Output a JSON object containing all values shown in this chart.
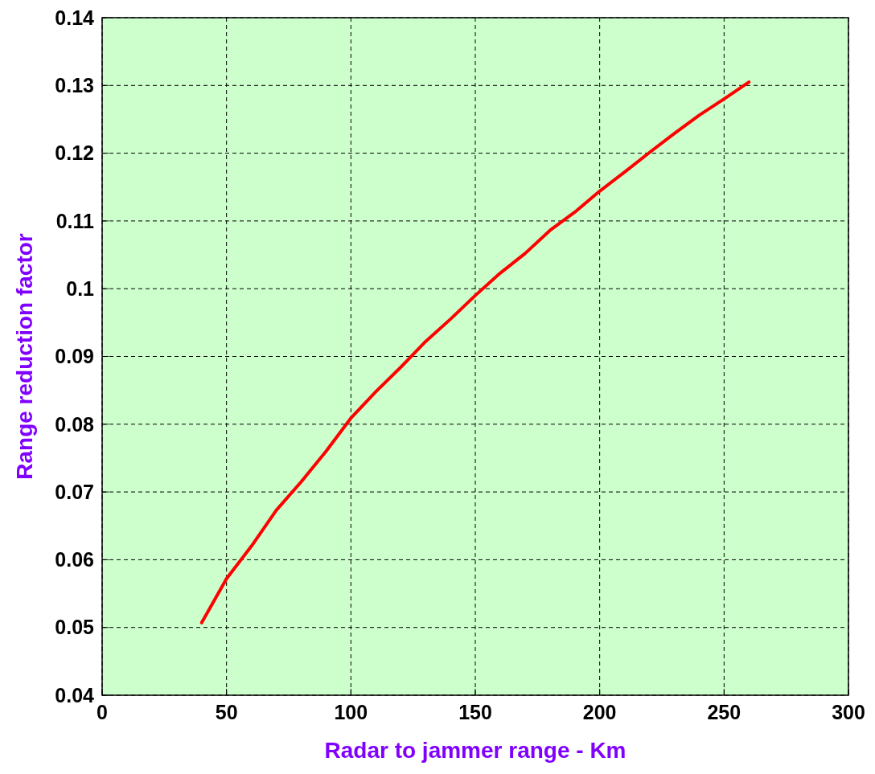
{
  "chart_data": {
    "type": "line",
    "xlabel": "Radar to jammer range - Km",
    "ylabel": "Range reduction factor",
    "x": [
      40,
      50,
      60,
      70,
      80,
      90,
      100,
      110,
      120,
      130,
      140,
      150,
      160,
      170,
      180,
      190,
      200,
      210,
      220,
      230,
      240,
      250,
      260
    ],
    "series": [
      {
        "color": "#ff0000",
        "values": [
          0.0507,
          0.0572,
          0.062,
          0.0673,
          0.0715,
          0.076,
          0.0809,
          0.0848,
          0.0884,
          0.0922,
          0.0955,
          0.099,
          0.1023,
          0.1052,
          0.1086,
          0.1113,
          0.1144,
          0.1172,
          0.1201,
          0.1229,
          0.1256,
          0.128,
          0.1305
        ]
      }
    ],
    "xlim": [
      0,
      300
    ],
    "ylim": [
      0.04,
      0.14
    ],
    "xticks": [
      0,
      50,
      100,
      150,
      200,
      250,
      300
    ],
    "yticks": [
      0.04,
      0.05,
      0.06,
      0.07,
      0.08,
      0.09,
      0.1,
      0.11,
      0.12,
      0.13,
      0.14
    ],
    "grid": true,
    "marker": "none",
    "line_style": "solid"
  }
}
